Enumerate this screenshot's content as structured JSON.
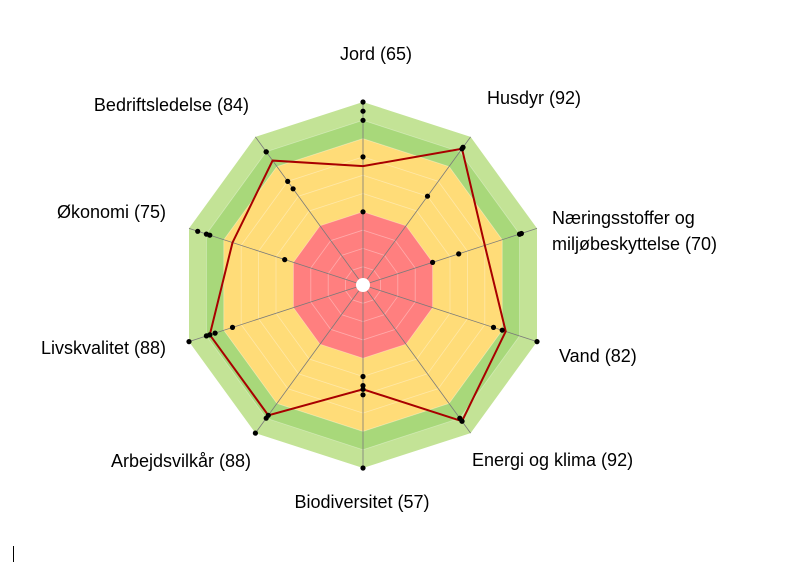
{
  "chart_data": {
    "type": "radar",
    "title": "",
    "rlim": [
      0,
      100
    ],
    "zones": [
      {
        "from": 0,
        "to": 40,
        "color": "#ff7f7f"
      },
      {
        "from": 40,
        "to": 80,
        "color": "#ffdc78"
      },
      {
        "from": 80,
        "to": 100,
        "color": "#c3e396"
      }
    ],
    "band_highlight": {
      "from": 80,
      "to": 90,
      "color": "#a8d87a"
    },
    "axes": [
      {
        "name": "Jord",
        "label": "Jord (65)",
        "value": 65,
        "points": [
          40,
          70,
          90,
          95,
          100
        ]
      },
      {
        "name": "Husdyr",
        "label": "Husdyr (92)",
        "value": 92,
        "points": [
          60,
          92,
          93,
          93
        ]
      },
      {
        "name": "Næringsstoffer og miljøbeskyttelse",
        "label_lines": [
          "Næringsstoffer og",
          "miljøbeskyttelse (70)"
        ],
        "value": 70,
        "points": [
          40,
          55,
          90,
          90,
          91
        ]
      },
      {
        "name": "Vand",
        "label": "Vand (82)",
        "value": 82,
        "points": [
          75,
          80,
          100
        ]
      },
      {
        "name": "Energi og klima",
        "label": "Energi og klima (92)",
        "value": 92,
        "points": [
          90,
          92,
          92
        ]
      },
      {
        "name": "Biodiversitet",
        "label": "Biodiversitet (57)",
        "value": 57,
        "points": [
          50,
          55,
          57,
          60,
          100
        ]
      },
      {
        "name": "Arbejdsvilkår",
        "label": "Arbejdsvilkår (88)",
        "value": 88,
        "points": [
          88,
          90,
          100
        ]
      },
      {
        "name": "Livskvalitet",
        "label": "Livskvalitet (88)",
        "value": 88,
        "points": [
          75,
          85,
          88,
          88,
          90,
          100
        ]
      },
      {
        "name": "Økonomi",
        "label": "Økonomi (75)",
        "value": 75,
        "points": [
          45,
          88,
          90,
          95
        ]
      },
      {
        "name": "Bedriftsledelse",
        "label": "Bedriftsledelse (84)",
        "value": 84,
        "points": [
          65,
          70,
          90,
          90
        ]
      }
    ],
    "series_color": "#a80000",
    "grid": true
  }
}
